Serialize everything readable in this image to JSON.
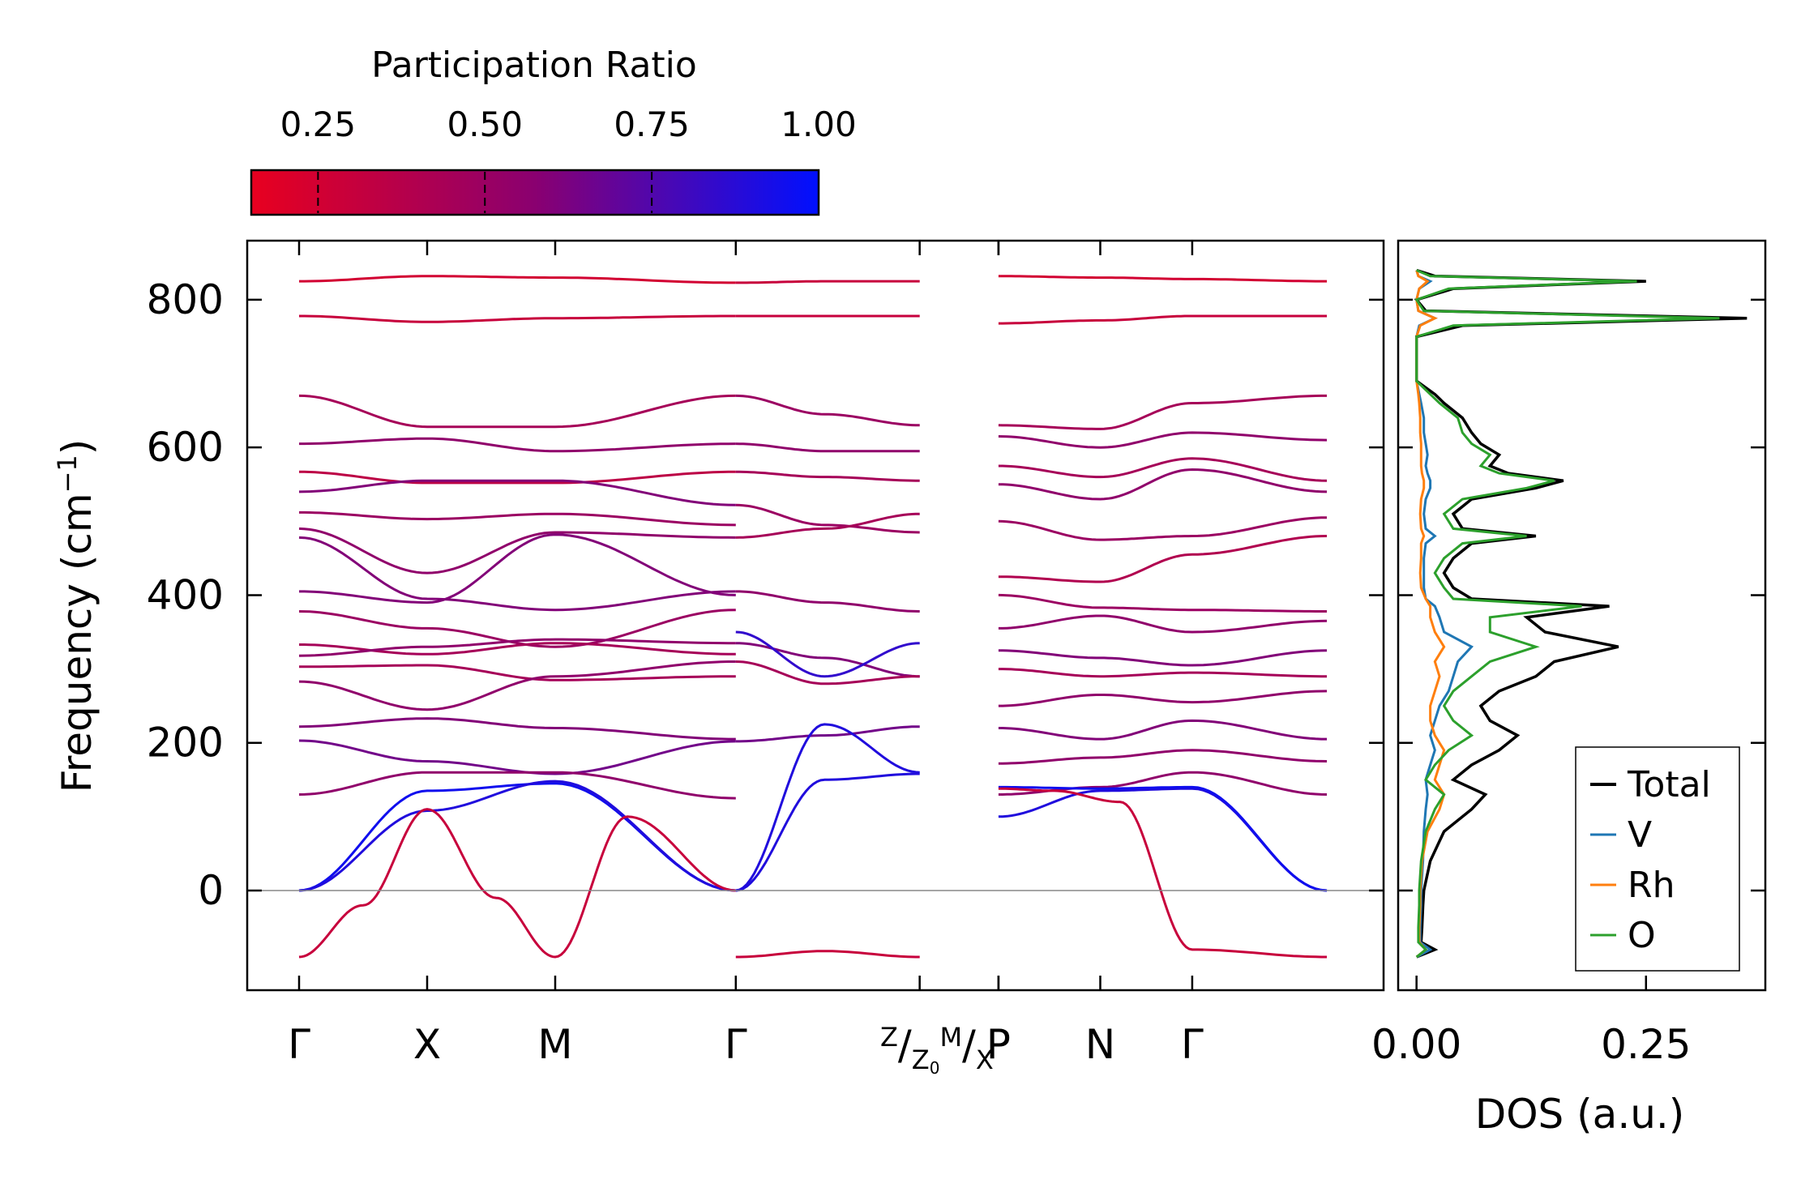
{
  "colors": {
    "low": "#e8001f",
    "mid": "#8a0070",
    "high": "#0010ff",
    "total": "#000000",
    "V": "#1f77b4",
    "Rh": "#ff7f0e",
    "O": "#2ca02c",
    "zero_line": "#888888"
  },
  "chart_data": [
    {
      "type": "colorbar",
      "title": "Participation Ratio",
      "ticks": [
        "0.25",
        "0.50",
        "0.75",
        "1.00"
      ],
      "tick_values": [
        0.25,
        0.5,
        0.75,
        1.0
      ],
      "range": [
        0.15,
        1.0
      ]
    },
    {
      "type": "line",
      "name": "phonon-band-structure",
      "ylabel_main": "Frequency (cm",
      "ylabel_sup": "−1",
      "ylabel_close": ")",
      "ylim": [
        -135,
        880
      ],
      "yticks": [
        0,
        200,
        400,
        600,
        800
      ],
      "ytick_labels": [
        "0",
        "200",
        "400",
        "600",
        "800"
      ],
      "path_positions": [
        0,
        0.78,
        1.56,
        2.66,
        3.78,
        4.26,
        4.88,
        5.44,
        6.26
      ],
      "segments": [
        [
          0,
          3.78
        ],
        [
          4.26,
          6.26
        ]
      ],
      "xtick_labels": [
        {
          "pos": 0,
          "text": "Γ"
        },
        {
          "pos": 0.78,
          "text": "X"
        },
        {
          "pos": 1.56,
          "text": "M"
        },
        {
          "pos": 2.66,
          "text": "Γ"
        },
        {
          "pos": 4.26,
          "text": "P"
        },
        {
          "pos": 4.88,
          "text": "N"
        },
        {
          "pos": 5.44,
          "text": "Γ"
        }
      ],
      "boundary_label": {
        "pos_a": 3.78,
        "pos_b": 4.26,
        "a": "Z",
        "b": "Z",
        "b_sub": "0",
        "c": "M",
        "d": "X"
      },
      "boundary_label_text": "Z/Z0M/X",
      "extra_tick_positions": [
        3.78
      ],
      "bands": [
        {
          "x": [
            0,
            0.78,
            1.56,
            2.66
          ],
          "y": [
            825,
            832,
            830,
            823
          ],
          "pr": 0.25
        },
        {
          "x": [
            0,
            0.78,
            1.56,
            2.66
          ],
          "y": [
            778,
            770,
            775,
            778
          ],
          "pr": 0.3
        },
        {
          "x": [
            0,
            0.78,
            1.56,
            2.66
          ],
          "y": [
            670,
            628,
            628,
            670
          ],
          "pr": 0.45
        },
        {
          "x": [
            0,
            0.78,
            1.56,
            2.66
          ],
          "y": [
            605,
            612,
            595,
            605
          ],
          "pr": 0.55
        },
        {
          "x": [
            0,
            0.78,
            1.56,
            2.66
          ],
          "y": [
            567,
            552,
            552,
            567
          ],
          "pr": 0.35
        },
        {
          "x": [
            0,
            0.78,
            1.56,
            2.66
          ],
          "y": [
            540,
            555,
            555,
            522
          ],
          "pr": 0.6
        },
        {
          "x": [
            0,
            0.78,
            1.56,
            2.66
          ],
          "y": [
            512,
            503,
            510,
            495
          ],
          "pr": 0.5
        },
        {
          "x": [
            0,
            0.78,
            1.56,
            2.66
          ],
          "y": [
            490,
            430,
            485,
            478
          ],
          "pr": 0.55
        },
        {
          "x": [
            0,
            0.78,
            1.56,
            2.66
          ],
          "y": [
            478,
            395,
            380,
            405
          ],
          "pr": 0.6
        },
        {
          "x": [
            0,
            0.78,
            1.56,
            2.66
          ],
          "y": [
            405,
            390,
            482,
            400
          ],
          "pr": 0.6
        },
        {
          "x": [
            0,
            0.78,
            1.56,
            2.66
          ],
          "y": [
            378,
            355,
            330,
            380
          ],
          "pr": 0.5
        },
        {
          "x": [
            0,
            0.78,
            1.56,
            2.66
          ],
          "y": [
            333,
            320,
            335,
            320
          ],
          "pr": 0.45
        },
        {
          "x": [
            0,
            0.78,
            1.56,
            2.66
          ],
          "y": [
            318,
            330,
            340,
            335
          ],
          "pr": 0.55
        },
        {
          "x": [
            0,
            0.78,
            1.56,
            2.66
          ],
          "y": [
            303,
            305,
            285,
            290
          ],
          "pr": 0.45
        },
        {
          "x": [
            0,
            0.78,
            1.56,
            2.66
          ],
          "y": [
            283,
            245,
            290,
            310
          ],
          "pr": 0.55
        },
        {
          "x": [
            0,
            0.78,
            1.56,
            2.66
          ],
          "y": [
            222,
            233,
            220,
            205
          ],
          "pr": 0.6
        },
        {
          "x": [
            0,
            0.78,
            1.56,
            2.66
          ],
          "y": [
            203,
            175,
            158,
            202
          ],
          "pr": 0.65
        },
        {
          "x": [
            0,
            0.78,
            1.56,
            2.66
          ],
          "y": [
            130,
            160,
            160,
            125
          ],
          "pr": 0.55
        },
        {
          "x": [
            0,
            0.78,
            1.56,
            2.66
          ],
          "y": [
            0,
            135,
            145,
            0
          ],
          "pr": 0.95
        },
        {
          "x": [
            0,
            0.78,
            1.56,
            2.66
          ],
          "y": [
            0,
            108,
            148,
            0
          ],
          "pr": 0.9
        },
        {
          "x": [
            0,
            0.39,
            0.78,
            1.2,
            1.56,
            2.0,
            2.66
          ],
          "y": [
            -90,
            -20,
            110,
            -10,
            -90,
            100,
            0
          ],
          "pr": 0.3
        },
        {
          "x": [
            2.66,
            3.2,
            3.78
          ],
          "y": [
            -90,
            -82,
            -90
          ],
          "pr": 0.3
        },
        {
          "x": [
            2.66,
            3.2,
            3.78
          ],
          "y": [
            823,
            825,
            825
          ],
          "pr": 0.3
        },
        {
          "x": [
            2.66,
            3.2,
            3.78
          ],
          "y": [
            778,
            778,
            778
          ],
          "pr": 0.3
        },
        {
          "x": [
            2.66,
            3.2,
            3.78
          ],
          "y": [
            670,
            645,
            630
          ],
          "pr": 0.5
        },
        {
          "x": [
            2.66,
            3.2,
            3.78
          ],
          "y": [
            605,
            595,
            595
          ],
          "pr": 0.55
        },
        {
          "x": [
            2.66,
            3.2,
            3.78
          ],
          "y": [
            567,
            560,
            555
          ],
          "pr": 0.45
        },
        {
          "x": [
            2.66,
            3.2,
            3.78
          ],
          "y": [
            522,
            495,
            485
          ],
          "pr": 0.5
        },
        {
          "x": [
            2.66,
            3.2,
            3.78
          ],
          "y": [
            478,
            490,
            510
          ],
          "pr": 0.45
        },
        {
          "x": [
            2.66,
            3.2,
            3.78
          ],
          "y": [
            405,
            390,
            378
          ],
          "pr": 0.55
        },
        {
          "x": [
            2.66,
            3.2,
            3.78
          ],
          "y": [
            335,
            315,
            290
          ],
          "pr": 0.6
        },
        {
          "x": [
            2.66,
            3.2,
            3.78
          ],
          "y": [
            310,
            280,
            290
          ],
          "pr": 0.45
        },
        {
          "x": [
            2.66,
            3.2,
            3.78
          ],
          "y": [
            202,
            210,
            222
          ],
          "pr": 0.65
        },
        {
          "x": [
            2.66,
            3.2,
            3.78
          ],
          "y": [
            0,
            150,
            158
          ],
          "pr": 0.9
        },
        {
          "x": [
            2.66,
            3.2,
            3.78
          ],
          "y": [
            0,
            225,
            160
          ],
          "pr": 0.9
        },
        {
          "x": [
            2.66,
            3.2,
            3.78
          ],
          "y": [
            350,
            290,
            335
          ],
          "pr": 0.85
        },
        {
          "x": [
            4.26,
            4.88,
            5.44,
            6.26
          ],
          "y": [
            832,
            830,
            828,
            825
          ],
          "pr": 0.25
        },
        {
          "x": [
            4.26,
            4.88,
            5.44,
            6.26
          ],
          "y": [
            768,
            772,
            778,
            778
          ],
          "pr": 0.3
        },
        {
          "x": [
            4.26,
            4.88,
            5.44,
            6.26
          ],
          "y": [
            630,
            625,
            660,
            670
          ],
          "pr": 0.45
        },
        {
          "x": [
            4.26,
            4.88,
            5.44,
            6.26
          ],
          "y": [
            615,
            600,
            620,
            610
          ],
          "pr": 0.55
        },
        {
          "x": [
            4.26,
            4.88,
            5.44,
            6.26
          ],
          "y": [
            575,
            560,
            585,
            555
          ],
          "pr": 0.45
        },
        {
          "x": [
            4.26,
            4.88,
            5.44,
            6.26
          ],
          "y": [
            550,
            530,
            570,
            540
          ],
          "pr": 0.55
        },
        {
          "x": [
            4.26,
            4.88,
            5.44,
            6.26
          ],
          "y": [
            500,
            475,
            480,
            505
          ],
          "pr": 0.5
        },
        {
          "x": [
            4.26,
            4.88,
            5.44,
            6.26
          ],
          "y": [
            425,
            418,
            455,
            480
          ],
          "pr": 0.4
        },
        {
          "x": [
            4.26,
            4.88,
            5.44,
            6.26
          ],
          "y": [
            400,
            383,
            380,
            378
          ],
          "pr": 0.5
        },
        {
          "x": [
            4.26,
            4.88,
            5.44,
            6.26
          ],
          "y": [
            355,
            372,
            350,
            365
          ],
          "pr": 0.55
        },
        {
          "x": [
            4.26,
            4.88,
            5.44,
            6.26
          ],
          "y": [
            325,
            315,
            305,
            325
          ],
          "pr": 0.6
        },
        {
          "x": [
            4.26,
            4.88,
            5.44,
            6.26
          ],
          "y": [
            300,
            290,
            295,
            290
          ],
          "pr": 0.45
        },
        {
          "x": [
            4.26,
            4.88,
            5.44,
            6.26
          ],
          "y": [
            250,
            265,
            255,
            270
          ],
          "pr": 0.55
        },
        {
          "x": [
            4.26,
            4.88,
            5.44,
            6.26
          ],
          "y": [
            220,
            205,
            230,
            205
          ],
          "pr": 0.6
        },
        {
          "x": [
            4.26,
            4.88,
            5.44,
            6.26
          ],
          "y": [
            172,
            180,
            190,
            175
          ],
          "pr": 0.55
        },
        {
          "x": [
            4.26,
            4.88,
            5.44,
            6.26
          ],
          "y": [
            130,
            140,
            160,
            130
          ],
          "pr": 0.55
        },
        {
          "x": [
            4.26,
            4.88,
            5.44,
            6.26
          ],
          "y": [
            100,
            135,
            138,
            0
          ],
          "pr": 0.9
        },
        {
          "x": [
            4.26,
            4.88,
            5.44,
            6.26
          ],
          "y": [
            140,
            138,
            140,
            0
          ],
          "pr": 0.95
        },
        {
          "x": [
            4.26,
            4.6,
            5.0,
            5.44,
            6.26
          ],
          "y": [
            138,
            135,
            120,
            -80,
            -90
          ],
          "pr": 0.3
        }
      ]
    },
    {
      "type": "line",
      "name": "density-of-states",
      "xlabel": "DOS (a.u.)",
      "xlim": [
        -0.02,
        0.38
      ],
      "xticks": [
        0,
        0.25
      ],
      "xtick_labels": [
        "0.00",
        "0.25"
      ],
      "ylim": [
        -135,
        880
      ],
      "legend": [
        "Total",
        "V",
        "Rh",
        "O"
      ],
      "legend_position": "bottom-right",
      "freq": [
        -90,
        -80,
        -70,
        -50,
        -20,
        0,
        40,
        80,
        110,
        130,
        150,
        170,
        190,
        210,
        230,
        250,
        270,
        290,
        310,
        330,
        350,
        370,
        385,
        395,
        410,
        430,
        450,
        470,
        480,
        490,
        510,
        530,
        545,
        555,
        565,
        575,
        590,
        605,
        620,
        640,
        660,
        672,
        690,
        750,
        765,
        775,
        785,
        800,
        815,
        825,
        832,
        840
      ],
      "series": [
        {
          "name": "Total",
          "values": [
            0.0,
            0.02,
            0.005,
            0.006,
            0.007,
            0.008,
            0.015,
            0.03,
            0.06,
            0.075,
            0.04,
            0.06,
            0.09,
            0.11,
            0.08,
            0.07,
            0.09,
            0.13,
            0.15,
            0.22,
            0.14,
            0.12,
            0.21,
            0.06,
            0.04,
            0.03,
            0.04,
            0.06,
            0.13,
            0.05,
            0.04,
            0.06,
            0.13,
            0.16,
            0.1,
            0.08,
            0.09,
            0.07,
            0.06,
            0.05,
            0.03,
            0.02,
            0.0,
            0.0,
            0.05,
            0.36,
            0.01,
            0.0,
            0.04,
            0.25,
            0.02,
            0.0
          ]
        },
        {
          "name": "V",
          "values": [
            0.0,
            0.015,
            0.004,
            0.004,
            0.005,
            0.005,
            0.007,
            0.008,
            0.01,
            0.012,
            0.01,
            0.015,
            0.02,
            0.015,
            0.02,
            0.025,
            0.035,
            0.04,
            0.045,
            0.06,
            0.03,
            0.025,
            0.02,
            0.01,
            0.008,
            0.008,
            0.008,
            0.01,
            0.02,
            0.01,
            0.008,
            0.01,
            0.015,
            0.015,
            0.012,
            0.01,
            0.012,
            0.01,
            0.008,
            0.008,
            0.005,
            0.003,
            0.0,
            0.0,
            0.003,
            0.02,
            0.002,
            0.0,
            0.003,
            0.015,
            0.002,
            0.0
          ]
        },
        {
          "name": "Rh",
          "values": [
            0.0,
            0.01,
            0.003,
            0.003,
            0.004,
            0.004,
            0.006,
            0.012,
            0.025,
            0.03,
            0.02,
            0.025,
            0.03,
            0.02,
            0.015,
            0.015,
            0.02,
            0.025,
            0.02,
            0.03,
            0.02,
            0.015,
            0.015,
            0.01,
            0.005,
            0.004,
            0.005,
            0.005,
            0.008,
            0.005,
            0.004,
            0.005,
            0.008,
            0.008,
            0.006,
            0.005,
            0.005,
            0.005,
            0.004,
            0.004,
            0.003,
            0.002,
            0.0,
            0.0,
            0.004,
            0.02,
            0.002,
            0.0,
            0.003,
            0.012,
            0.002,
            0.0
          ]
        },
        {
          "name": "O",
          "values": [
            0.0,
            0.01,
            0.002,
            0.002,
            0.003,
            0.003,
            0.005,
            0.01,
            0.02,
            0.03,
            0.01,
            0.02,
            0.035,
            0.06,
            0.04,
            0.03,
            0.04,
            0.06,
            0.08,
            0.13,
            0.08,
            0.08,
            0.18,
            0.04,
            0.03,
            0.02,
            0.03,
            0.05,
            0.12,
            0.04,
            0.03,
            0.05,
            0.12,
            0.15,
            0.09,
            0.07,
            0.08,
            0.06,
            0.05,
            0.045,
            0.025,
            0.015,
            0.0,
            0.0,
            0.04,
            0.33,
            0.008,
            0.0,
            0.035,
            0.24,
            0.015,
            0.0
          ]
        }
      ]
    }
  ]
}
